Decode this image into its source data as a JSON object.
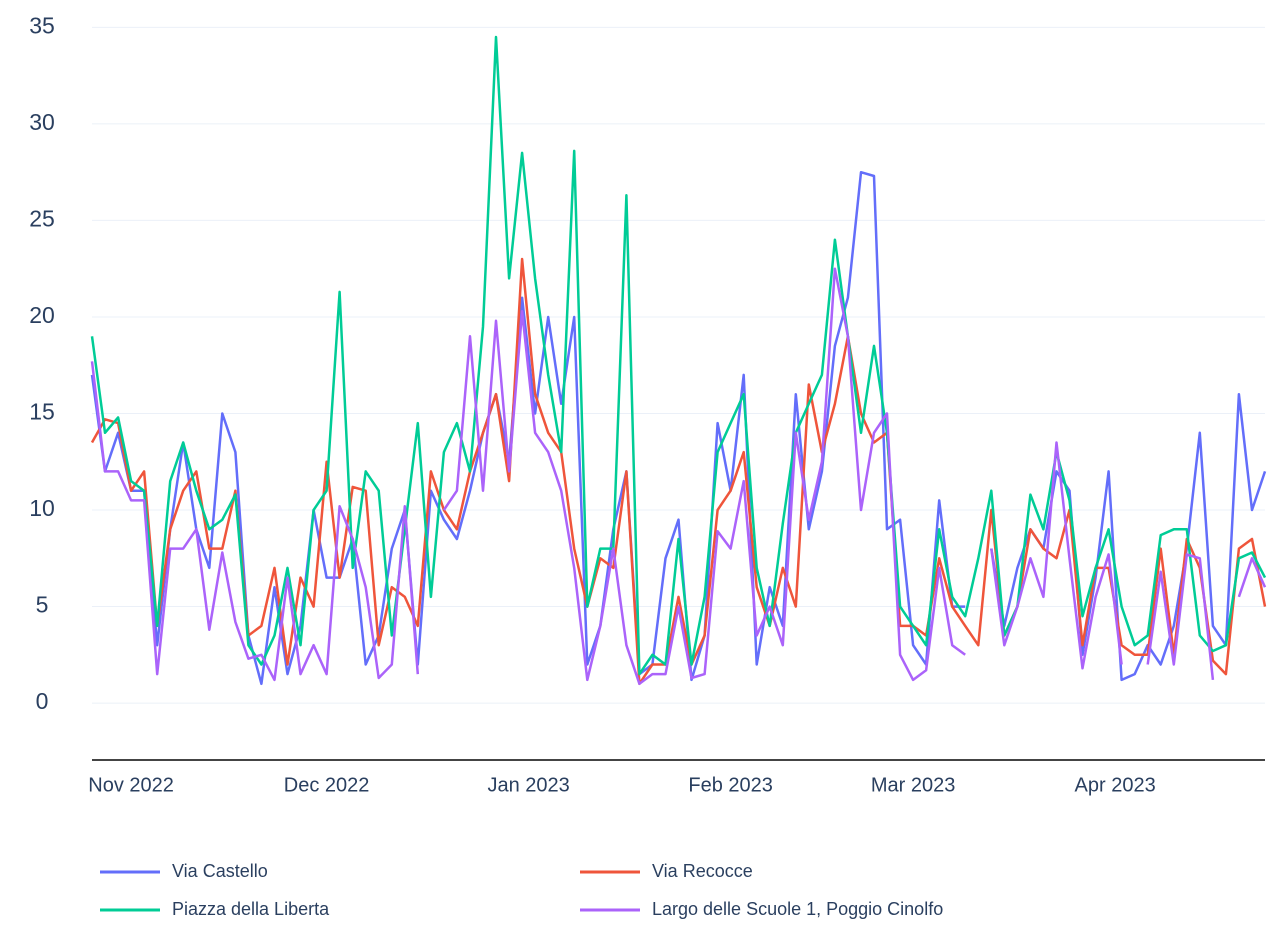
{
  "chart_data": {
    "type": "line",
    "x": [
      "2022-10-26",
      "2022-10-28",
      "2022-10-30",
      "2022-11-01",
      "2022-11-03",
      "2022-11-05",
      "2022-11-07",
      "2022-11-09",
      "2022-11-11",
      "2022-11-13",
      "2022-11-15",
      "2022-11-17",
      "2022-11-19",
      "2022-11-21",
      "2022-11-23",
      "2022-11-25",
      "2022-11-27",
      "2022-11-29",
      "2022-12-01",
      "2022-12-03",
      "2022-12-05",
      "2022-12-07",
      "2022-12-09",
      "2022-12-11",
      "2022-12-13",
      "2022-12-15",
      "2022-12-17",
      "2022-12-19",
      "2022-12-21",
      "2022-12-23",
      "2022-12-25",
      "2022-12-27",
      "2022-12-29",
      "2022-12-31",
      "2023-01-02",
      "2023-01-04",
      "2023-01-06",
      "2023-01-08",
      "2023-01-10",
      "2023-01-12",
      "2023-01-14",
      "2023-01-16",
      "2023-01-18",
      "2023-01-20",
      "2023-01-22",
      "2023-01-24",
      "2023-01-26",
      "2023-01-28",
      "2023-01-30",
      "2023-02-01",
      "2023-02-03",
      "2023-02-05",
      "2023-02-07",
      "2023-02-09",
      "2023-02-11",
      "2023-02-13",
      "2023-02-15",
      "2023-02-17",
      "2023-02-19",
      "2023-02-21",
      "2023-02-23",
      "2023-02-25",
      "2023-02-27",
      "2023-03-01",
      "2023-03-03",
      "2023-03-05",
      "2023-03-07",
      "2023-03-09",
      "2023-03-11",
      "2023-03-13",
      "2023-03-15",
      "2023-03-17",
      "2023-03-19",
      "2023-03-21",
      "2023-03-23",
      "2023-03-25",
      "2023-03-27",
      "2023-03-29",
      "2023-03-31",
      "2023-04-02",
      "2023-04-04",
      "2023-04-06",
      "2023-04-08",
      "2023-04-10",
      "2023-04-12",
      "2023-04-14",
      "2023-04-16",
      "2023-04-18",
      "2023-04-20",
      "2023-04-22",
      "2023-04-24"
    ],
    "series": [
      {
        "name": "Via Castello",
        "color": "#636efa",
        "values": [
          17,
          12,
          14,
          11,
          11,
          3,
          9,
          13.5,
          9,
          7,
          15,
          13,
          3.5,
          1,
          6,
          1.5,
          4,
          10,
          6.5,
          6.5,
          8.5,
          2,
          3.5,
          8,
          10,
          2,
          11,
          9.5,
          8.5,
          11,
          14,
          16,
          12.5,
          21,
          15,
          20,
          15.5,
          20,
          2,
          4,
          9,
          12,
          1.5,
          2,
          7.5,
          9.5,
          1.2,
          3.5,
          14.5,
          11,
          17,
          2,
          6,
          4,
          16,
          9,
          12,
          18.5,
          21,
          27.5,
          27.3,
          9,
          9.5,
          3,
          2,
          10.5,
          5,
          5,
          null,
          8,
          4,
          7,
          9,
          8,
          12,
          11,
          2.5,
          6.5,
          12,
          1.2,
          1.5,
          3,
          2,
          4,
          8,
          14,
          4,
          3,
          16,
          10,
          12
        ]
      },
      {
        "name": "Via Recocce",
        "color": "#ef553b",
        "values": [
          13.5,
          14.7,
          14.5,
          11,
          12,
          4,
          9,
          11,
          12,
          8,
          8,
          11,
          3.5,
          4,
          7,
          2,
          6.5,
          5,
          12.5,
          6.5,
          11.2,
          11,
          3,
          6,
          5.5,
          4,
          12,
          10,
          9,
          12,
          14,
          16,
          11.5,
          23,
          16,
          14,
          13,
          8,
          5,
          7.5,
          7,
          12,
          1,
          2,
          2,
          5.5,
          2,
          3.5,
          10,
          11,
          13,
          6,
          4,
          7,
          5,
          16.5,
          13,
          15.5,
          19,
          15,
          13.5,
          14,
          4,
          4,
          3.5,
          7.5,
          5,
          4,
          3,
          10,
          3.5,
          5,
          9,
          8,
          7.5,
          10,
          3,
          7,
          7,
          3,
          2.5,
          2.5,
          8,
          2.5,
          8.5,
          7,
          2.2,
          1.5,
          8,
          8.5,
          5
        ]
      },
      {
        "name": "Piazza della Liberta",
        "color": "#00cc96",
        "values": [
          19,
          14,
          14.8,
          11.5,
          11,
          4,
          11.5,
          13.5,
          11,
          9,
          9.5,
          10.8,
          3,
          2,
          3.5,
          7,
          3,
          10,
          11,
          21.3,
          7,
          12,
          11,
          3.5,
          9,
          14.5,
          5.5,
          13,
          14.5,
          12,
          19.5,
          34.5,
          22,
          28.5,
          22,
          17,
          13,
          28.6,
          5,
          8,
          8,
          26.3,
          1.5,
          2.5,
          2,
          8.5,
          2,
          5.5,
          13,
          14.5,
          16,
          7,
          4,
          9.3,
          14,
          15.5,
          17,
          24,
          19,
          14,
          18.5,
          14,
          5,
          4,
          3,
          9,
          5.5,
          4.5,
          7.5,
          11,
          3.5,
          5,
          10.8,
          9,
          13,
          10.5,
          4.5,
          7,
          9,
          5,
          3,
          3.5,
          8.7,
          9,
          9,
          3.5,
          2.7,
          3,
          7.5,
          7.8,
          6.5
        ]
      },
      {
        "name": "Largo delle Scuole 1, Poggio Cinolfo",
        "color": "#ab63fa",
        "values": [
          17.7,
          12,
          12,
          10.5,
          10.5,
          1.5,
          8,
          8,
          9,
          3.8,
          7.8,
          4.2,
          2.3,
          2.5,
          1.2,
          6.5,
          1.5,
          3,
          1.5,
          10.2,
          8.5,
          6,
          1.3,
          2,
          10.2,
          1.5,
          null,
          10,
          11,
          19,
          11,
          19.8,
          12,
          20.3,
          14,
          13,
          11,
          7,
          1.2,
          4,
          8,
          3,
          1,
          1.5,
          1.5,
          5,
          1.3,
          1.5,
          8.9,
          8,
          11.5,
          3.5,
          5,
          3,
          14,
          9.5,
          12.5,
          22.5,
          19,
          10,
          14,
          15,
          2.5,
          1.2,
          1.7,
          7,
          3,
          2.5,
          null,
          8,
          3,
          5,
          7.5,
          5.5,
          13.5,
          7.5,
          1.8,
          5.5,
          7.7,
          2,
          null,
          2,
          6.8,
          2,
          7.7,
          7.5,
          1.2,
          null,
          5.5,
          7.5,
          6
        ]
      }
    ],
    "xlim": [
      "2022-10-26",
      "2023-04-24"
    ],
    "xticks": [
      {
        "value": "2022-11-01",
        "label": "Nov 2022"
      },
      {
        "value": "2022-12-01",
        "label": "Dec 2022"
      },
      {
        "value": "2023-01-01",
        "label": "Jan 2023"
      },
      {
        "value": "2023-02-01",
        "label": "Feb 2023"
      },
      {
        "value": "2023-03-01",
        "label": "Mar 2023"
      },
      {
        "value": "2023-04-01",
        "label": "Apr 2023"
      }
    ],
    "ylim": [
      -3,
      35.9
    ],
    "yticks": [
      0,
      5,
      10,
      15,
      20,
      25,
      30,
      35
    ],
    "grid": true,
    "legend": "bottom"
  }
}
